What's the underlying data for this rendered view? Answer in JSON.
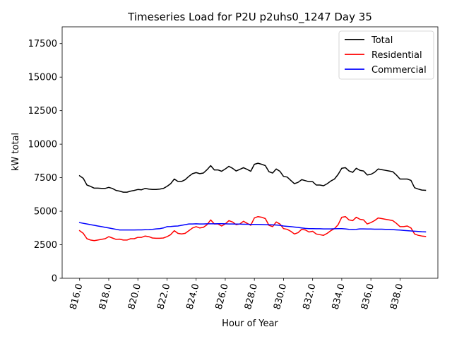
{
  "chart_data": {
    "type": "line",
    "title": "Timeseries Load for P2U p2uhs0_1247  Day 35",
    "xlabel": "Hour of Year",
    "ylabel": "kW total",
    "xlim": [
      814.8,
      840.6
    ],
    "ylim": [
      0,
      18750
    ],
    "xticks": [
      816,
      818,
      820,
      822,
      824,
      826,
      828,
      830,
      832,
      834,
      836,
      838
    ],
    "xtick_labels": [
      "816.0",
      "818.0",
      "820.0",
      "822.0",
      "824.0",
      "826.0",
      "828.0",
      "830.0",
      "832.0",
      "834.0",
      "836.0",
      "838.0"
    ],
    "yticks": [
      0,
      2500,
      5000,
      7500,
      10000,
      12500,
      15000,
      17500
    ],
    "ytick_labels": [
      "0",
      "2500",
      "5000",
      "7500",
      "10000",
      "12500",
      "15000",
      "17500"
    ],
    "legend_position": "upper right",
    "x": [
      816.0,
      816.25,
      816.5,
      816.75,
      817.0,
      817.25,
      817.5,
      817.75,
      818.0,
      818.25,
      818.5,
      818.75,
      819.0,
      819.25,
      819.5,
      819.75,
      820.0,
      820.25,
      820.5,
      820.75,
      821.0,
      821.25,
      821.5,
      821.75,
      822.0,
      822.25,
      822.5,
      822.75,
      823.0,
      823.25,
      823.5,
      823.75,
      824.0,
      824.25,
      824.5,
      824.75,
      825.0,
      825.25,
      825.5,
      825.75,
      826.0,
      826.25,
      826.5,
      826.75,
      827.0,
      827.25,
      827.5,
      827.75,
      828.0,
      828.25,
      828.5,
      828.75,
      829.0,
      829.25,
      829.5,
      829.75,
      830.0,
      830.25,
      830.5,
      830.75,
      831.0,
      831.25,
      831.5,
      831.75,
      832.0,
      832.25,
      832.5,
      832.75,
      833.0,
      833.25,
      833.5,
      833.75,
      834.0,
      834.25,
      834.5,
      834.75,
      835.0,
      835.25,
      835.5,
      835.75,
      836.0,
      836.25,
      836.5,
      836.75,
      837.0,
      837.25,
      837.5,
      837.75,
      838.0,
      838.25,
      838.5,
      838.75,
      839.0,
      839.25,
      839.5,
      839.75
    ],
    "series": [
      {
        "name": "Total",
        "color": "#000000",
        "values": [
          7650,
          7450,
          6950,
          6850,
          6720,
          6720,
          6700,
          6700,
          6780,
          6700,
          6550,
          6500,
          6420,
          6420,
          6500,
          6550,
          6620,
          6600,
          6700,
          6650,
          6620,
          6620,
          6650,
          6700,
          6850,
          7050,
          7400,
          7220,
          7220,
          7350,
          7600,
          7800,
          7880,
          7800,
          7850,
          8100,
          8400,
          8080,
          8080,
          7980,
          8150,
          8350,
          8200,
          8000,
          8120,
          8250,
          8120,
          7980,
          8500,
          8580,
          8500,
          8400,
          7950,
          7850,
          8150,
          7980,
          7600,
          7550,
          7300,
          7050,
          7150,
          7350,
          7280,
          7200,
          7200,
          6950,
          6950,
          6900,
          7050,
          7250,
          7400,
          7750,
          8200,
          8250,
          8000,
          7900,
          8200,
          8050,
          8000,
          7700,
          7750,
          7900,
          8150,
          8100,
          8050,
          8000,
          7950,
          7700,
          7400,
          7400,
          7400,
          7300,
          6750,
          6650,
          6580,
          6560
        ]
      },
      {
        "name": "Residential",
        "color": "#ff0000",
        "values": [
          3550,
          3350,
          2950,
          2850,
          2800,
          2850,
          2900,
          2950,
          3100,
          3000,
          2900,
          2920,
          2850,
          2850,
          2950,
          2950,
          3050,
          3050,
          3150,
          3100,
          3000,
          2980,
          2980,
          3000,
          3100,
          3250,
          3550,
          3350,
          3300,
          3350,
          3550,
          3750,
          3850,
          3750,
          3800,
          4000,
          4350,
          4050,
          4050,
          3900,
          4050,
          4300,
          4200,
          4000,
          4050,
          4250,
          4100,
          3950,
          4500,
          4600,
          4550,
          4450,
          3950,
          3850,
          4200,
          4050,
          3700,
          3650,
          3500,
          3300,
          3400,
          3650,
          3600,
          3450,
          3500,
          3300,
          3250,
          3200,
          3350,
          3550,
          3700,
          4000,
          4550,
          4600,
          4350,
          4300,
          4550,
          4400,
          4350,
          4050,
          4150,
          4300,
          4500,
          4450,
          4400,
          4350,
          4300,
          4100,
          3850,
          3850,
          3900,
          3750,
          3300,
          3200,
          3150,
          3120
        ]
      },
      {
        "name": "Commercial",
        "color": "#0000ff",
        "values": [
          4150,
          4100,
          4050,
          4000,
          3950,
          3900,
          3850,
          3800,
          3750,
          3700,
          3650,
          3600,
          3600,
          3600,
          3600,
          3600,
          3610,
          3610,
          3620,
          3630,
          3650,
          3680,
          3700,
          3750,
          3850,
          3860,
          3880,
          3900,
          3950,
          4000,
          4050,
          4050,
          4060,
          4050,
          4050,
          4060,
          4060,
          4060,
          4070,
          4070,
          4060,
          4050,
          4050,
          4040,
          4040,
          4030,
          4030,
          4020,
          4020,
          4020,
          4010,
          4000,
          3990,
          3980,
          3970,
          3950,
          3900,
          3870,
          3850,
          3820,
          3790,
          3750,
          3720,
          3700,
          3700,
          3690,
          3690,
          3680,
          3680,
          3680,
          3690,
          3700,
          3700,
          3680,
          3650,
          3640,
          3650,
          3680,
          3680,
          3670,
          3670,
          3660,
          3660,
          3660,
          3650,
          3650,
          3630,
          3610,
          3590,
          3570,
          3550,
          3530,
          3510,
          3490,
          3470,
          3460
        ]
      }
    ]
  }
}
